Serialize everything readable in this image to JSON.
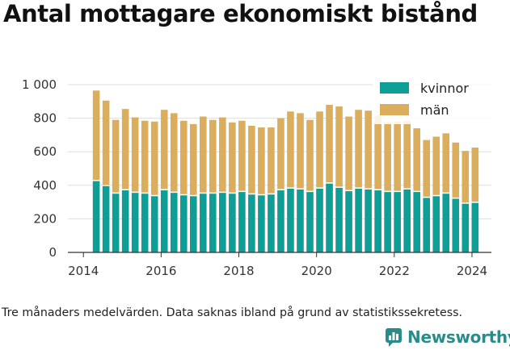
{
  "title": "Antal mottagare ekonomiskt bistånd",
  "caption": "Tre månaders medelvärden. Data saknas ibland på grund av statistikssekretess.",
  "brand": {
    "name": "Newsworthy"
  },
  "colors": {
    "kvinnor": "#0f9e96",
    "man": "#daae5c",
    "grid": "#dddddd",
    "axis": "#333333",
    "brand": "#2a8c8a"
  },
  "chart_data": {
    "type": "bar",
    "stacked": true,
    "title": "Antal mottagare ekonomiskt bistånd",
    "xlabel": "",
    "ylabel": "",
    "ylim": [
      0,
      1000
    ],
    "yticks": [
      0,
      200,
      400,
      600,
      800,
      1000
    ],
    "ytick_labels": [
      "0",
      "200",
      "400",
      "600",
      "800",
      "1 000"
    ],
    "xticks": [
      2014,
      2016,
      2018,
      2020,
      2022,
      2024
    ],
    "xlim": [
      2013.6,
      2024.5
    ],
    "grid": true,
    "legend": "top-right",
    "x": [
      2014.33,
      2014.58,
      2014.83,
      2015.08,
      2015.33,
      2015.58,
      2015.83,
      2016.08,
      2016.33,
      2016.58,
      2016.83,
      2017.08,
      2017.33,
      2017.58,
      2017.83,
      2018.08,
      2018.33,
      2018.58,
      2018.83,
      2019.08,
      2019.33,
      2019.58,
      2019.83,
      2020.08,
      2020.33,
      2020.58,
      2020.83,
      2021.08,
      2021.33,
      2021.58,
      2021.83,
      2022.08,
      2022.33,
      2022.58,
      2022.83,
      2023.08,
      2023.33,
      2023.58,
      2023.83,
      2024.08
    ],
    "series": [
      {
        "name": "kvinnor",
        "values": [
          425,
          395,
          350,
          370,
          355,
          350,
          335,
          370,
          355,
          340,
          335,
          350,
          350,
          355,
          350,
          360,
          345,
          340,
          345,
          370,
          380,
          375,
          360,
          380,
          410,
          385,
          365,
          380,
          375,
          370,
          360,
          360,
          375,
          360,
          325,
          335,
          350,
          320,
          290,
          295
        ]
      },
      {
        "name": "män",
        "values": [
          540,
          510,
          440,
          485,
          450,
          435,
          445,
          480,
          475,
          445,
          430,
          460,
          440,
          450,
          425,
          425,
          410,
          405,
          400,
          430,
          460,
          455,
          430,
          460,
          470,
          485,
          445,
          470,
          470,
          445,
          415,
          420,
          410,
          380,
          345,
          355,
          360,
          335,
          315,
          330
        ]
      }
    ]
  }
}
